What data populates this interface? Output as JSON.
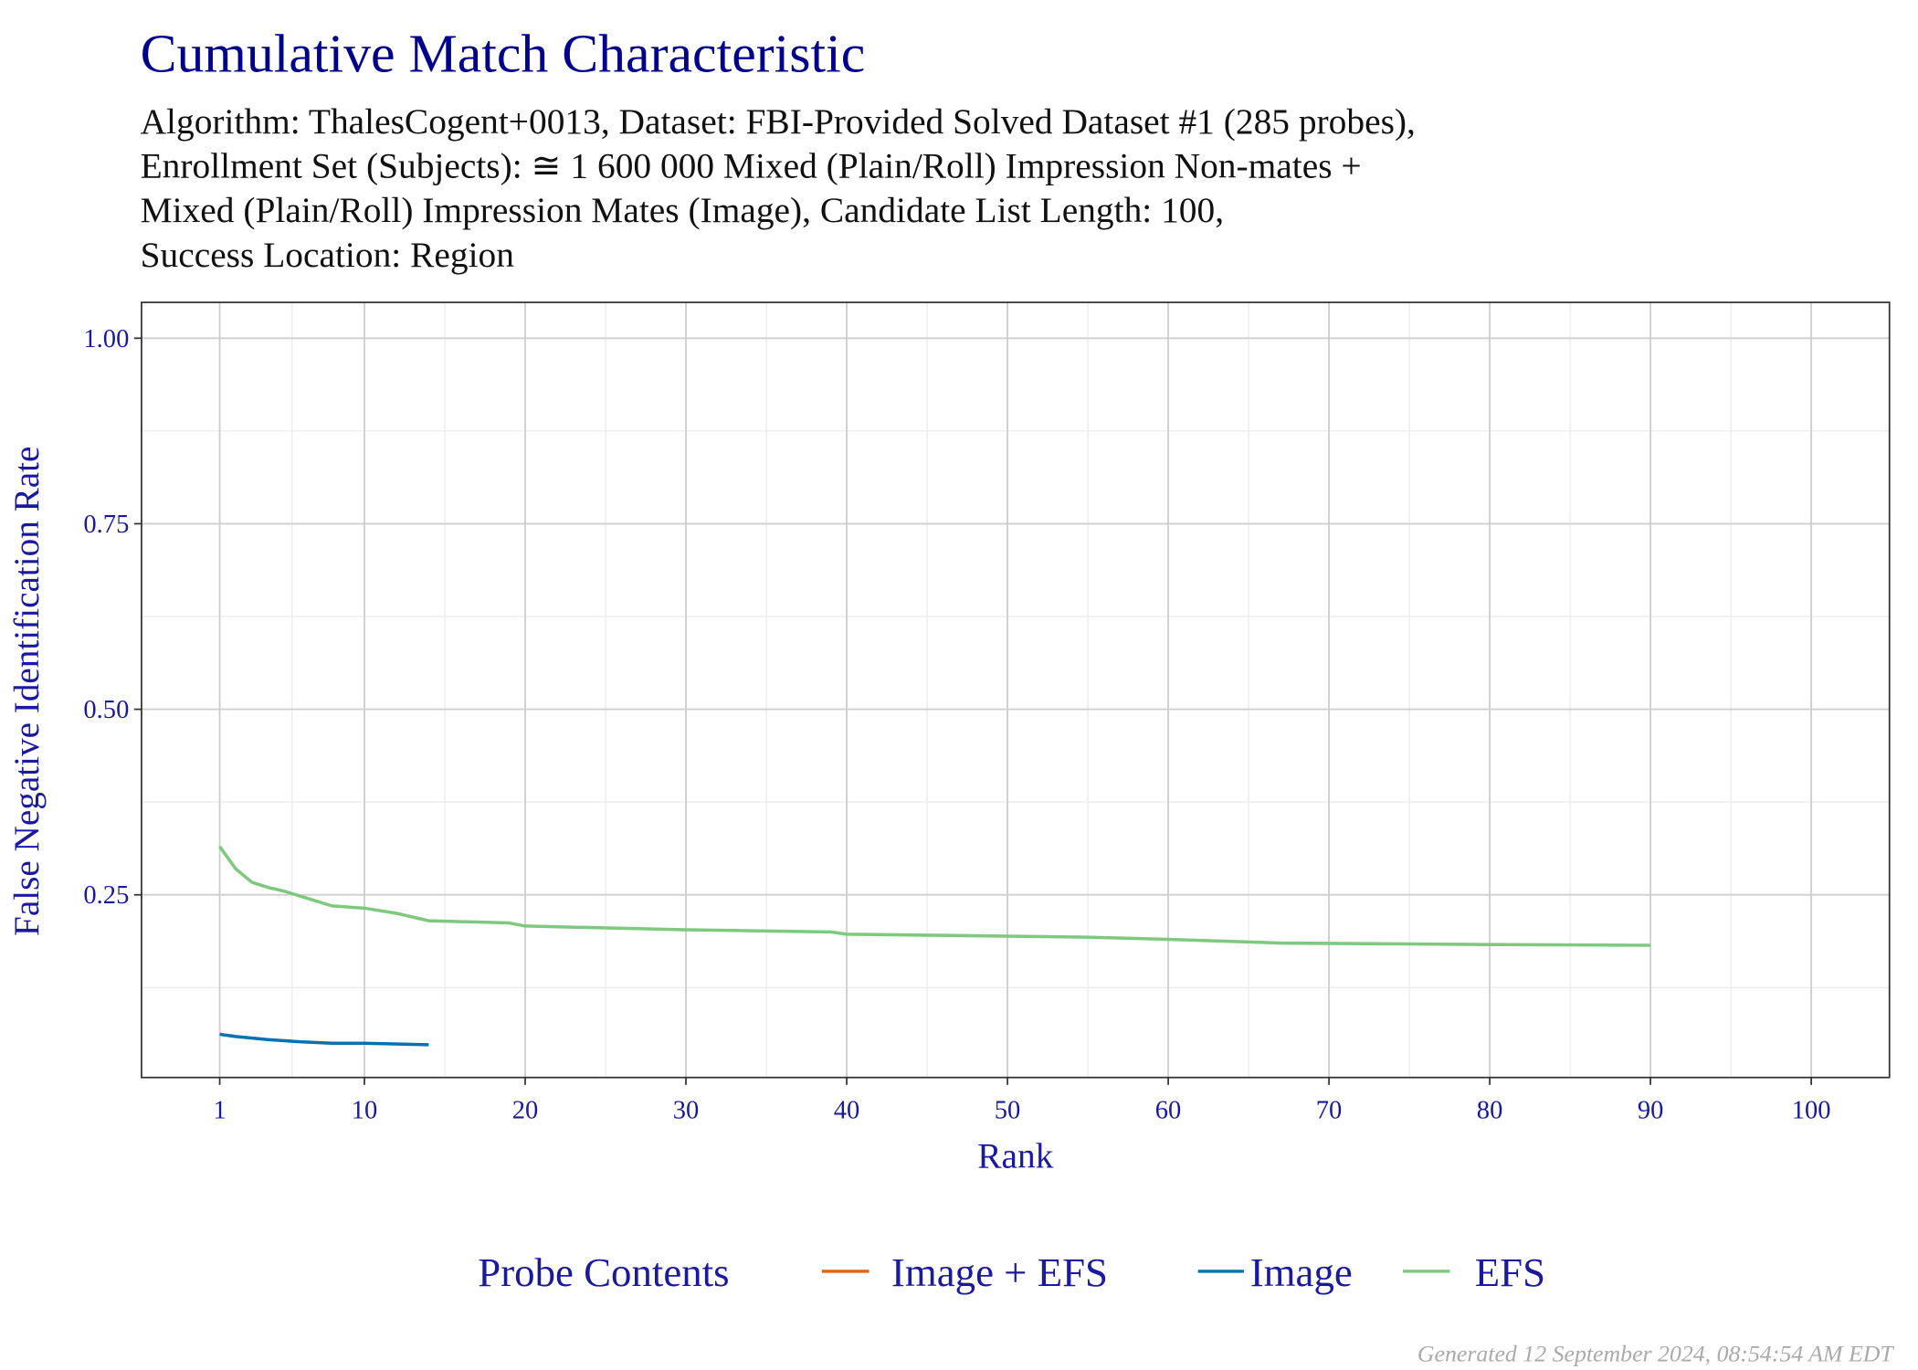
{
  "chart_data": {
    "type": "line",
    "title": "Cumulative Match Characteristic",
    "subtitle_lines": [
      "Algorithm: ThalesCogent+0013, Dataset: FBI-Provided Solved Dataset #1 (285 probes),",
      "Enrollment Set (Subjects): ≅ 1 600 000 Mixed (Plain/Roll) Impression Non-mates +",
      "Mixed (Plain/Roll) Impression Mates (Image), Candidate List Length: 100,",
      "Success Location: Region"
    ],
    "xlabel": "Rank",
    "ylabel": "False Negative Identification Rate",
    "xlim": [
      -3.5,
      105
    ],
    "ylim": [
      0,
      1.048
    ],
    "x_ticks": [
      1,
      10,
      20,
      30,
      40,
      50,
      60,
      70,
      80,
      90,
      100
    ],
    "x_tick_labels": [
      "1",
      "10",
      "20",
      "30",
      "40",
      "50",
      "60",
      "70",
      "80",
      "90",
      "100"
    ],
    "y_ticks": [
      0.25,
      0.5,
      0.75,
      1.0
    ],
    "y_tick_labels": [
      "0.25",
      "0.50",
      "0.75",
      "1.00"
    ],
    "grid": true,
    "legend": {
      "title": "Probe Contents",
      "placement": "bottom"
    },
    "series": [
      {
        "name": "Image + EFS",
        "color": "#E66101",
        "x": [],
        "y": []
      },
      {
        "name": "Image",
        "color": "#0571B0",
        "x": [
          1,
          2,
          4,
          6,
          8,
          10,
          14
        ],
        "y": [
          0.062,
          0.059,
          0.055,
          0.052,
          0.05,
          0.05,
          0.048
        ]
      },
      {
        "name": "EFS",
        "color": "#7FC97F",
        "x": [
          1,
          2,
          3,
          4,
          5,
          8,
          10,
          12,
          14,
          19,
          20,
          30,
          39,
          40,
          55,
          60,
          67,
          80,
          90
        ],
        "y": [
          0.315,
          0.285,
          0.267,
          0.26,
          0.255,
          0.235,
          0.232,
          0.225,
          0.215,
          0.212,
          0.208,
          0.203,
          0.2,
          0.197,
          0.193,
          0.19,
          0.185,
          0.183,
          0.182
        ]
      }
    ],
    "footer": "Generated 12 September 2024, 08:54:54 AM EDT"
  },
  "colors": {
    "title": "#00008B",
    "axis_text": "#1A1A9A",
    "footer": "#AAAAAA"
  }
}
